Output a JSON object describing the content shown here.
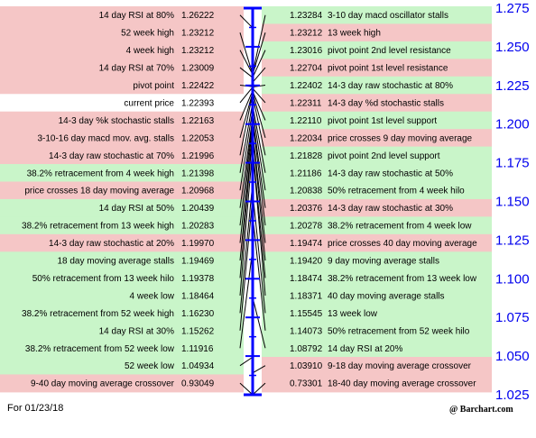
{
  "footer": {
    "date_text": "For 01/23/18",
    "brand_text": "@ Barchart.com"
  },
  "colors": {
    "resistance_bg": "#f5c6c6",
    "support_bg": "#c9f5c9",
    "current_bg": "#ffffff",
    "axis": "#0000ff",
    "scale_text": "#0000ee",
    "connector": "#000000"
  },
  "chart_data": {
    "type": "pivot-ladder",
    "scale": {
      "min": 1.025,
      "max": 1.275,
      "ticks": [
        "1.275",
        "1.250",
        "1.225",
        "1.200",
        "1.175",
        "1.150",
        "1.125",
        "1.100",
        "1.075",
        "1.050",
        "1.025"
      ]
    },
    "pivot": 1.22422,
    "current_price": 1.22393,
    "left": [
      {
        "label": "14 day RSI at 80%",
        "value": "1.26222",
        "type": "resistance"
      },
      {
        "label": "52 week high",
        "value": "1.23212",
        "type": "resistance"
      },
      {
        "label": "4 week high",
        "value": "1.23212",
        "type": "resistance"
      },
      {
        "label": "14 day RSI at 70%",
        "value": "1.23009",
        "type": "resistance"
      },
      {
        "label": "pivot point",
        "value": "1.22422",
        "type": "resistance"
      },
      {
        "label": "current price",
        "value": "1.22393",
        "type": "current"
      },
      {
        "label": "14-3 day %k stochastic stalls",
        "value": "1.22163",
        "type": "resistance"
      },
      {
        "label": "3-10-16 day macd mov. avg. stalls",
        "value": "1.22053",
        "type": "resistance"
      },
      {
        "label": "14-3 day raw stochastic at 70%",
        "value": "1.21996",
        "type": "resistance"
      },
      {
        "label": "38.2% retracement from 4 week high",
        "value": "1.21398",
        "type": "support"
      },
      {
        "label": "price crosses 18 day moving average",
        "value": "1.20968",
        "type": "resistance"
      },
      {
        "label": "14 day RSI at 50%",
        "value": "1.20439",
        "type": "support"
      },
      {
        "label": "38.2% retracement from 13 week high",
        "value": "1.20283",
        "type": "support"
      },
      {
        "label": "14-3 day raw stochastic at 20%",
        "value": "1.19970",
        "type": "resistance"
      },
      {
        "label": "18 day moving average stalls",
        "value": "1.19469",
        "type": "support"
      },
      {
        "label": "50% retracement from 13 week hilo",
        "value": "1.19378",
        "type": "support"
      },
      {
        "label": "4 week low",
        "value": "1.18464",
        "type": "support"
      },
      {
        "label": "38.2% retracement from 52 week high",
        "value": "1.16230",
        "type": "support"
      },
      {
        "label": "14 day RSI at 30%",
        "value": "1.15262",
        "type": "support"
      },
      {
        "label": "38.2% retracement from 52 week low",
        "value": "1.11916",
        "type": "support"
      },
      {
        "label": "52 week low",
        "value": "1.04934",
        "type": "support"
      },
      {
        "label": "9-40 day moving average crossover",
        "value": "0.93049",
        "type": "resistance"
      }
    ],
    "right": [
      {
        "label": "3-10 day macd oscillator stalls",
        "value": "1.23284",
        "type": "support"
      },
      {
        "label": "13 week high",
        "value": "1.23212",
        "type": "resistance"
      },
      {
        "label": "pivot point 2nd level resistance",
        "value": "1.23016",
        "type": "support"
      },
      {
        "label": "pivot point 1st level resistance",
        "value": "1.22704",
        "type": "resistance"
      },
      {
        "label": "14-3 day raw stochastic at 80%",
        "value": "1.22402",
        "type": "support"
      },
      {
        "label": "14-3 day %d stochastic stalls",
        "value": "1.22311",
        "type": "resistance"
      },
      {
        "label": "pivot point 1st level support",
        "value": "1.22110",
        "type": "support"
      },
      {
        "label": "price crosses 9 day moving average",
        "value": "1.22034",
        "type": "resistance"
      },
      {
        "label": "pivot point 2nd level support",
        "value": "1.21828",
        "type": "support"
      },
      {
        "label": "14-3 day raw stochastic at 50%",
        "value": "1.21186",
        "type": "support"
      },
      {
        "label": "50% retracement from 4 week hilo",
        "value": "1.20838",
        "type": "support"
      },
      {
        "label": "14-3 day raw stochastic at 30%",
        "value": "1.20376",
        "type": "resistance"
      },
      {
        "label": "38.2% retracement from 4 week low",
        "value": "1.20278",
        "type": "support"
      },
      {
        "label": "price crosses 40 day moving average",
        "value": "1.19474",
        "type": "resistance"
      },
      {
        "label": "9 day moving average stalls",
        "value": "1.19420",
        "type": "support"
      },
      {
        "label": "38.2% retracement from 13 week low",
        "value": "1.18474",
        "type": "support"
      },
      {
        "label": "40 day moving average stalls",
        "value": "1.18371",
        "type": "support"
      },
      {
        "label": "13 week low",
        "value": "1.15545",
        "type": "support"
      },
      {
        "label": "50% retracement from 52 week hilo",
        "value": "1.14073",
        "type": "support"
      },
      {
        "label": "14 day RSI at 20%",
        "value": "1.08792",
        "type": "support"
      },
      {
        "label": "9-18 day moving average crossover",
        "value": "1.03910",
        "type": "resistance"
      },
      {
        "label": "18-40 day moving average crossover",
        "value": "0.73301",
        "type": "resistance"
      }
    ]
  }
}
